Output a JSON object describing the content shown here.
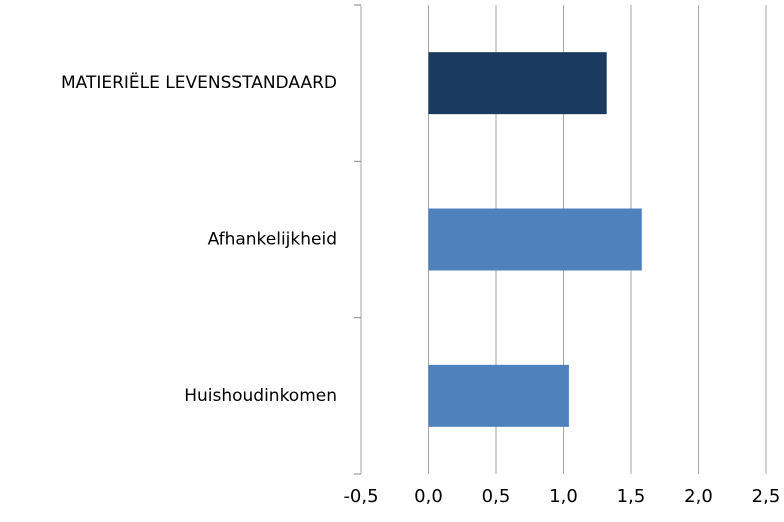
{
  "chart_data": {
    "type": "hbar",
    "categories": [
      "MATIERIËLE LEVENSSTANDAARD",
      "Afhankelijkheid",
      "Huishoudinkomen"
    ],
    "values": [
      1.32,
      1.58,
      1.04
    ],
    "colors": [
      "#1b3a60",
      "#4f81bd",
      "#4f81bd"
    ],
    "xlim": [
      -0.5,
      2.5
    ],
    "xticks": [
      {
        "value": -0.5,
        "label": "-0,5"
      },
      {
        "value": 0,
        "label": "0,0"
      },
      {
        "value": 0.5,
        "label": "0,5"
      },
      {
        "value": 1,
        "label": "1,0"
      },
      {
        "value": 1.5,
        "label": "1,5"
      },
      {
        "value": 2,
        "label": "2,0"
      },
      {
        "value": 2.5,
        "label": "2,5"
      }
    ],
    "grid": true
  }
}
